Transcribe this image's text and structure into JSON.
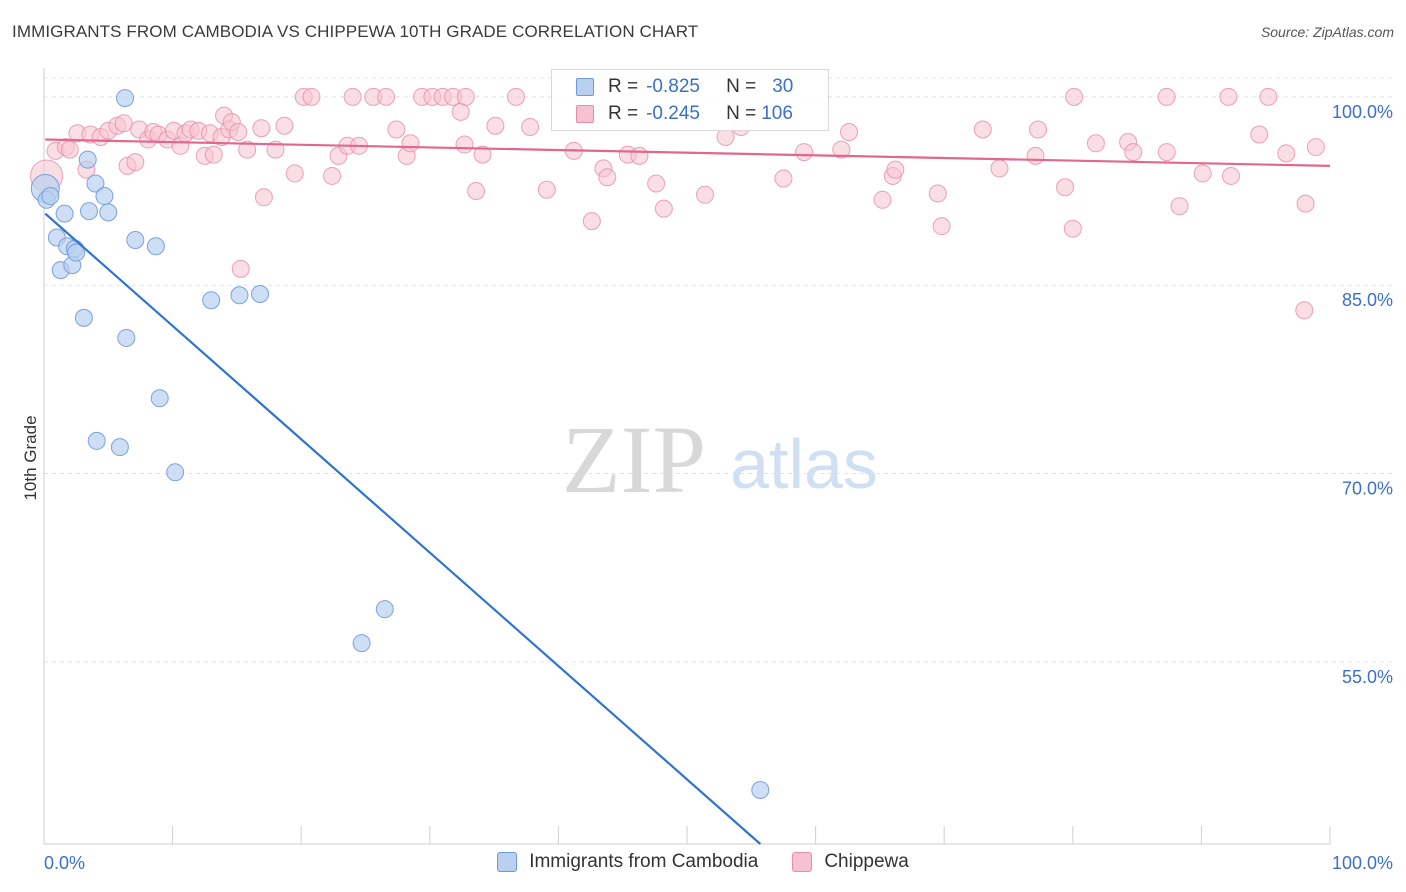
{
  "header": {
    "title": "IMMIGRANTS FROM CAMBODIA VS CHIPPEWA 10TH GRADE CORRELATION CHART",
    "source": "Source: ZipAtlas.com"
  },
  "watermark": {
    "zip": "ZIP",
    "atlas": "atlas"
  },
  "legend": {
    "series1": {
      "r_label": "R =",
      "r_value": "-0.825",
      "n_label": "N =",
      "n_value": "30"
    },
    "series2": {
      "r_label": "R =",
      "r_value": "-0.245",
      "n_label": "N =",
      "n_value": "106"
    }
  },
  "bottom_legend": {
    "series1": "Immigrants from Cambodia",
    "series2": "Chippewa"
  },
  "colors": {
    "blue_fill": "#b9d0f0",
    "blue_stroke": "#6f9ad8",
    "blue_line": "#2f74d0",
    "pink_fill": "#f6c2d2",
    "pink_stroke": "#e98ba9",
    "pink_line": "#e2678d",
    "axis_label": "#3b6fc9",
    "grid": "#e4e4e4"
  },
  "chart_data": {
    "type": "scatter",
    "title": "IMMIGRANTS FROM CAMBODIA VS CHIPPEWA 10TH GRADE CORRELATION CHART",
    "xlabel": "",
    "ylabel": "10th Grade",
    "xlim": [
      0,
      100
    ],
    "ylim": [
      40.5,
      101.5
    ],
    "x_tick_labels": [
      "0.0%",
      "100.0%"
    ],
    "y_ticks": [
      {
        "value": 100,
        "label": "100.0%"
      },
      {
        "value": 85,
        "label": "85.0%"
      },
      {
        "value": 70,
        "label": "70.0%"
      },
      {
        "value": 55,
        "label": "55.0%"
      }
    ],
    "grid": true,
    "series": [
      {
        "name": "Immigrants from Cambodia",
        "color": "#b9d0f0",
        "points": [
          [
            0.1,
            92.7
          ],
          [
            0.2,
            91.8
          ],
          [
            0.5,
            92.1
          ],
          [
            1.0,
            88.8
          ],
          [
            1.3,
            86.2
          ],
          [
            1.6,
            90.7
          ],
          [
            1.8,
            88.1
          ],
          [
            2.2,
            86.6
          ],
          [
            2.4,
            87.9
          ],
          [
            2.5,
            87.6
          ],
          [
            3.1,
            82.4
          ],
          [
            3.4,
            95.0
          ],
          [
            3.5,
            90.9
          ],
          [
            4.0,
            93.1
          ],
          [
            4.1,
            72.6
          ],
          [
            4.7,
            92.1
          ],
          [
            5.0,
            90.8
          ],
          [
            5.9,
            72.1
          ],
          [
            6.4,
            80.8
          ],
          [
            7.1,
            88.6
          ],
          [
            8.7,
            88.1
          ],
          [
            9.0,
            76.0
          ],
          [
            10.2,
            70.1
          ],
          [
            13.0,
            83.8
          ],
          [
            15.2,
            84.2
          ],
          [
            16.8,
            84.3
          ],
          [
            24.7,
            56.5
          ],
          [
            26.5,
            59.2
          ],
          [
            6.3,
            99.9
          ],
          [
            55.7,
            44.8
          ]
        ]
      },
      {
        "name": "Chippewa",
        "color": "#f6c2d2",
        "points": [
          [
            0.2,
            93.7
          ],
          [
            0.9,
            95.7
          ],
          [
            1.7,
            96.0
          ],
          [
            2.0,
            95.8
          ],
          [
            2.6,
            97.1
          ],
          [
            3.3,
            94.2
          ],
          [
            3.6,
            97.0
          ],
          [
            4.4,
            96.8
          ],
          [
            5.0,
            97.3
          ],
          [
            5.7,
            97.7
          ],
          [
            6.2,
            97.9
          ],
          [
            6.5,
            94.5
          ],
          [
            7.1,
            94.8
          ],
          [
            7.4,
            97.4
          ],
          [
            8.1,
            96.6
          ],
          [
            8.5,
            97.2
          ],
          [
            8.9,
            97.0
          ],
          [
            9.6,
            96.6
          ],
          [
            10.1,
            97.3
          ],
          [
            10.6,
            96.1
          ],
          [
            11.0,
            97.1
          ],
          [
            11.4,
            97.4
          ],
          [
            12.0,
            97.3
          ],
          [
            12.5,
            95.3
          ],
          [
            12.9,
            97.1
          ],
          [
            13.2,
            95.4
          ],
          [
            13.8,
            96.8
          ],
          [
            14.0,
            98.5
          ],
          [
            14.4,
            97.4
          ],
          [
            14.6,
            98.0
          ],
          [
            15.1,
            97.2
          ],
          [
            15.3,
            86.3
          ],
          [
            15.8,
            95.8
          ],
          [
            16.9,
            97.5
          ],
          [
            17.1,
            92.0
          ],
          [
            18.0,
            95.8
          ],
          [
            18.7,
            97.7
          ],
          [
            19.5,
            93.9
          ],
          [
            20.2,
            100.0
          ],
          [
            20.8,
            100.0
          ],
          [
            22.4,
            93.7
          ],
          [
            22.9,
            95.3
          ],
          [
            23.6,
            96.1
          ],
          [
            24.0,
            100.0
          ],
          [
            24.5,
            96.1
          ],
          [
            25.6,
            100.0
          ],
          [
            26.6,
            100.0
          ],
          [
            27.4,
            97.4
          ],
          [
            28.2,
            95.3
          ],
          [
            28.5,
            96.3
          ],
          [
            29.4,
            100.0
          ],
          [
            30.2,
            100.0
          ],
          [
            31.0,
            100.0
          ],
          [
            31.8,
            100.0
          ],
          [
            32.4,
            98.8
          ],
          [
            32.7,
            96.2
          ],
          [
            32.8,
            100.0
          ],
          [
            33.6,
            92.5
          ],
          [
            34.1,
            95.4
          ],
          [
            35.1,
            97.7
          ],
          [
            36.7,
            100.0
          ],
          [
            37.8,
            97.6
          ],
          [
            39.1,
            92.6
          ],
          [
            41.2,
            95.7
          ],
          [
            42.6,
            90.1
          ],
          [
            43.5,
            94.3
          ],
          [
            43.8,
            93.6
          ],
          [
            45.4,
            95.4
          ],
          [
            46.3,
            95.3
          ],
          [
            47.6,
            93.1
          ],
          [
            48.2,
            91.1
          ],
          [
            49.4,
            100.0
          ],
          [
            51.4,
            92.2
          ],
          [
            53.0,
            96.8
          ],
          [
            54.2,
            97.6
          ],
          [
            57.5,
            93.5
          ],
          [
            59.1,
            95.6
          ],
          [
            62.0,
            95.8
          ],
          [
            62.6,
            97.2
          ],
          [
            65.2,
            91.8
          ],
          [
            66.0,
            93.7
          ],
          [
            66.2,
            94.2
          ],
          [
            69.5,
            92.3
          ],
          [
            69.8,
            89.7
          ],
          [
            73.0,
            97.4
          ],
          [
            74.3,
            94.3
          ],
          [
            77.1,
            95.3
          ],
          [
            77.3,
            97.4
          ],
          [
            79.4,
            92.8
          ],
          [
            80.0,
            89.5
          ],
          [
            80.1,
            100.0
          ],
          [
            81.8,
            96.3
          ],
          [
            84.3,
            96.4
          ],
          [
            84.7,
            95.6
          ],
          [
            87.3,
            95.6
          ],
          [
            87.3,
            100.0
          ],
          [
            88.3,
            91.3
          ],
          [
            90.1,
            93.9
          ],
          [
            92.1,
            100.0
          ],
          [
            92.3,
            93.7
          ],
          [
            94.5,
            97.0
          ],
          [
            95.2,
            100.0
          ],
          [
            96.6,
            95.5
          ],
          [
            98.1,
            91.5
          ],
          [
            98.9,
            96.0
          ],
          [
            98.0,
            83.0
          ]
        ]
      }
    ],
    "trendlines": [
      {
        "series": "Immigrants from Cambodia",
        "from": [
          0.1,
          90.7
        ],
        "to": [
          55.7,
          40.5
        ]
      },
      {
        "series": "Chippewa",
        "from": [
          0.1,
          96.6
        ],
        "to": [
          100.0,
          94.5
        ]
      }
    ]
  }
}
